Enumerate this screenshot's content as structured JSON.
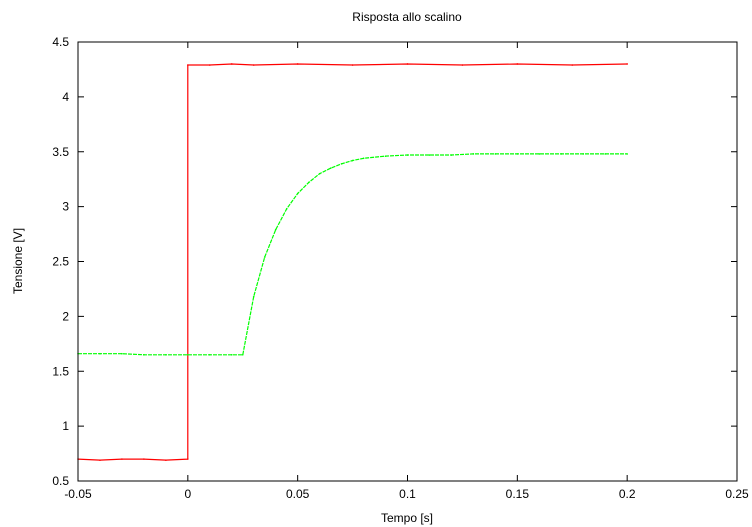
{
  "chart_data": {
    "type": "line",
    "title": "Risposta allo scalino",
    "xlabel": "Tempo [s]",
    "ylabel": "Tensione [V]",
    "xlim": [
      -0.05,
      0.25
    ],
    "ylim": [
      0.5,
      4.5
    ],
    "x_ticks": [
      "-0.05",
      "0",
      "0.05",
      "0.1",
      "0.15",
      "0.2",
      "0.25"
    ],
    "y_ticks": [
      "0.5",
      "1",
      "1.5",
      "2",
      "2.5",
      "3",
      "3.5",
      "4",
      "4.5"
    ],
    "grid": false,
    "legend": "none",
    "series": [
      {
        "color": "#ff0000",
        "style": "solid",
        "x": [
          -0.05,
          -0.04,
          -0.03,
          -0.02,
          -0.01,
          0.0,
          0.0,
          0.01,
          0.02,
          0.03,
          0.05,
          0.075,
          0.1,
          0.125,
          0.15,
          0.175,
          0.2
        ],
        "y": [
          0.7,
          0.69,
          0.7,
          0.7,
          0.69,
          0.7,
          4.29,
          4.29,
          4.3,
          4.29,
          4.3,
          4.29,
          4.3,
          4.29,
          4.3,
          4.29,
          4.3
        ]
      },
      {
        "color": "#00ff00",
        "style": "dashed",
        "x": [
          -0.05,
          -0.04,
          -0.03,
          -0.02,
          -0.01,
          0.0,
          0.01,
          0.02,
          0.025,
          0.03,
          0.035,
          0.04,
          0.045,
          0.05,
          0.055,
          0.06,
          0.065,
          0.07,
          0.075,
          0.08,
          0.09,
          0.1,
          0.11,
          0.12,
          0.13,
          0.14,
          0.15,
          0.16,
          0.17,
          0.18,
          0.19,
          0.2
        ],
        "y": [
          1.66,
          1.66,
          1.66,
          1.65,
          1.65,
          1.65,
          1.65,
          1.65,
          1.65,
          2.18,
          2.54,
          2.79,
          2.98,
          3.12,
          3.22,
          3.3,
          3.35,
          3.39,
          3.42,
          3.44,
          3.46,
          3.47,
          3.47,
          3.47,
          3.48,
          3.48,
          3.48,
          3.48,
          3.48,
          3.48,
          3.48,
          3.48
        ]
      }
    ]
  }
}
